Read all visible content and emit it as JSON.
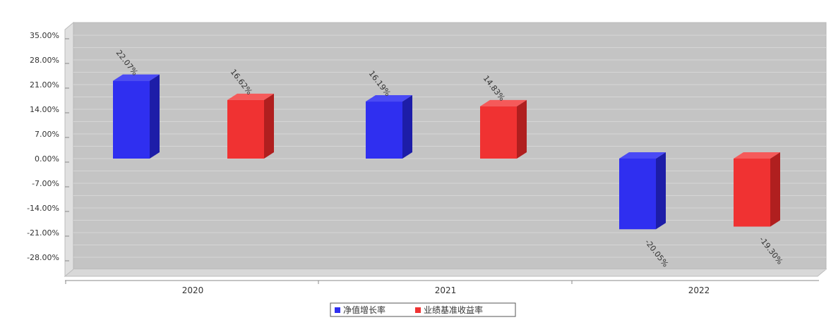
{
  "chart_data": {
    "type": "bar",
    "categories": [
      "2020",
      "2021",
      "2022"
    ],
    "series": [
      {
        "name": "净值增长率",
        "color": "#2f2ff0",
        "values": [
          22.07,
          16.19,
          -20.05
        ],
        "labels": [
          "22.07%",
          "16.19%",
          "-20.05%"
        ]
      },
      {
        "name": "业绩基准收益率",
        "color": "#f03232",
        "values": [
          16.62,
          14.83,
          -19.3
        ],
        "labels": [
          "16.62%",
          "14.83%",
          "-19.30%"
        ]
      }
    ],
    "yticks": [
      "35.00%",
      "28.00%",
      "21.00%",
      "14.00%",
      "7.00%",
      "0.00%",
      "-7.00%",
      "-14.00%",
      "-21.00%",
      "-28.00%"
    ],
    "ytick_values": [
      35,
      28,
      21,
      14,
      7,
      0,
      -7,
      -14,
      -21,
      -28
    ],
    "ylim": [
      -33,
      37
    ],
    "grid": true,
    "legend_position": "bottom-center",
    "title": "",
    "xlabel": "",
    "ylabel": ""
  }
}
